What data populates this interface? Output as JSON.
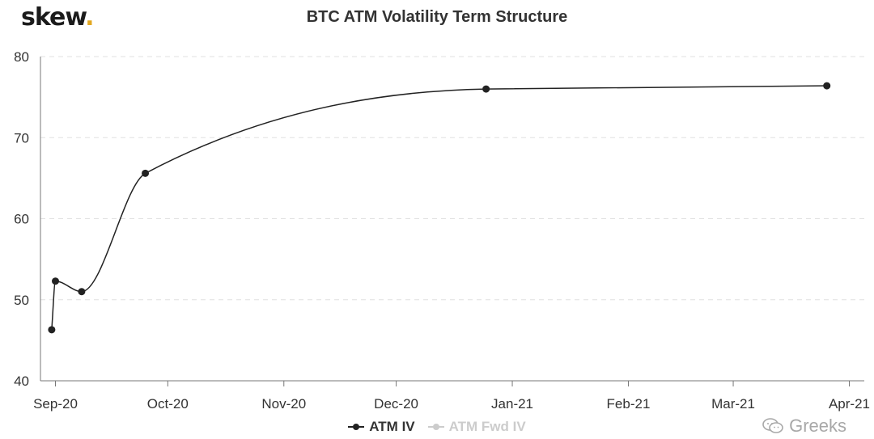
{
  "brand": {
    "name": "skew",
    "dot": "."
  },
  "watermark": "Greeks",
  "chart_data": {
    "type": "line",
    "title": "BTC ATM Volatility Term Structure",
    "xlabel": "",
    "ylabel": "",
    "ylim": [
      40,
      80
    ],
    "yticks": [
      40,
      50,
      60,
      70,
      80
    ],
    "x_axis_type": "date",
    "xlim": [
      "2020-08-28",
      "2021-04-05"
    ],
    "xticks": [
      {
        "date": "2020-09-01",
        "label": "Sep-20"
      },
      {
        "date": "2020-10-01",
        "label": "Oct-20"
      },
      {
        "date": "2020-11-01",
        "label": "Nov-20"
      },
      {
        "date": "2020-12-01",
        "label": "Dec-20"
      },
      {
        "date": "2021-01-01",
        "label": "Jan-21"
      },
      {
        "date": "2021-02-01",
        "label": "Feb-21"
      },
      {
        "date": "2021-03-01",
        "label": "Mar-21"
      },
      {
        "date": "2021-04-01",
        "label": "Apr-21"
      }
    ],
    "grid": "horizontal dashed",
    "legend_position": "bottom",
    "series": [
      {
        "name": "ATM IV",
        "color": "#222222",
        "visible": true,
        "x": [
          "2020-08-31",
          "2020-09-01",
          "2020-09-08",
          "2020-09-25",
          "2020-12-25",
          "2021-03-26"
        ],
        "values": [
          46.3,
          52.3,
          51.0,
          65.6,
          76.0,
          76.4
        ]
      },
      {
        "name": "ATM Fwd IV",
        "color": "#cccccc",
        "visible": false,
        "x": [],
        "values": []
      }
    ]
  }
}
